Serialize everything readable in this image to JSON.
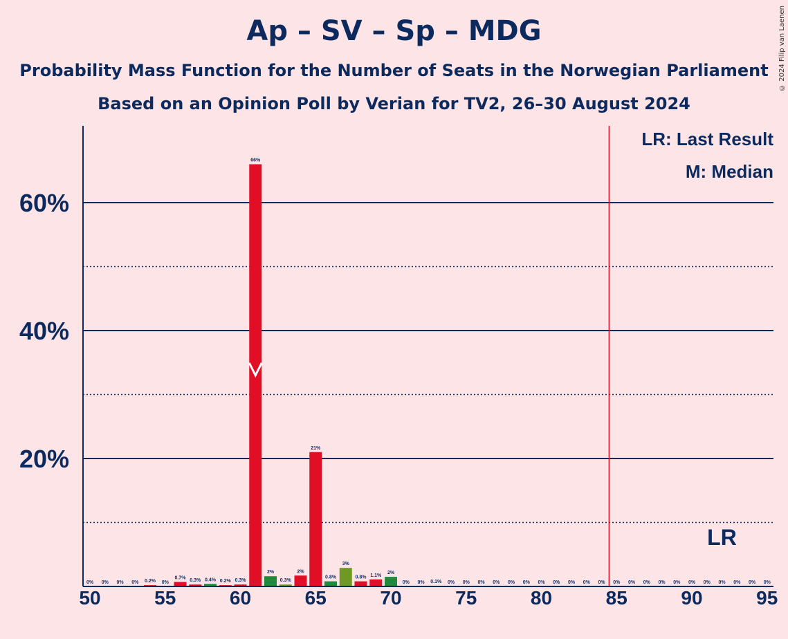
{
  "title": "Ap – SV – Sp – MDG",
  "subtitle1": "Probability Mass Function for the Number of Seats in the Norwegian Parliament",
  "subtitle2": "Based on an Opinion Poll by Verian for TV2, 26–30 August 2024",
  "copyright": "© 2024 Filip van Laenen",
  "legend": {
    "last_result": "LR: Last Result",
    "median": "M: Median"
  },
  "lr_marker": "LR",
  "colors": {
    "background": "#fde4e6",
    "text": "#0c2a5e",
    "red": "#e00f25",
    "green": "#1e8a3a",
    "olive": "#6e9a24",
    "majority_line": "#e00f25"
  },
  "chart_data": {
    "type": "bar",
    "xlim": [
      50,
      95
    ],
    "ylim": [
      0,
      72
    ],
    "x_ticks": [
      50,
      55,
      60,
      65,
      70,
      75,
      80,
      85,
      90,
      95
    ],
    "y_ticks_major": [
      20,
      40,
      60
    ],
    "y_ticks_minor": [
      10,
      30,
      50
    ],
    "y_tick_labels": [
      "20%",
      "40%",
      "60%"
    ],
    "majority_line_x": 84.5,
    "median_x": 61,
    "last_result_x": 92,
    "bars": [
      {
        "x": 50,
        "value": 0,
        "label": "0%",
        "color": "red"
      },
      {
        "x": 51,
        "value": 0,
        "label": "0%",
        "color": "red"
      },
      {
        "x": 52,
        "value": 0,
        "label": "0%",
        "color": "red"
      },
      {
        "x": 53,
        "value": 0,
        "label": "0%",
        "color": "red"
      },
      {
        "x": 54,
        "value": 0.2,
        "label": "0.2%",
        "color": "red"
      },
      {
        "x": 55,
        "value": 0,
        "label": "0%",
        "color": "red"
      },
      {
        "x": 56,
        "value": 0.7,
        "label": "0.7%",
        "color": "red"
      },
      {
        "x": 57,
        "value": 0.3,
        "label": "0.3%",
        "color": "red"
      },
      {
        "x": 58,
        "value": 0.4,
        "label": "0.4%",
        "color": "green"
      },
      {
        "x": 59,
        "value": 0.2,
        "label": "0.2%",
        "color": "red"
      },
      {
        "x": 60,
        "value": 0.3,
        "label": "0.3%",
        "color": "red"
      },
      {
        "x": 61,
        "value": 66,
        "label": "66%",
        "color": "red"
      },
      {
        "x": 62,
        "value": 1.6,
        "label": "2%",
        "color": "green"
      },
      {
        "x": 63,
        "value": 0.3,
        "label": "0.3%",
        "color": "olive"
      },
      {
        "x": 64,
        "value": 1.7,
        "label": "2%",
        "color": "red"
      },
      {
        "x": 65,
        "value": 21,
        "label": "21%",
        "color": "red"
      },
      {
        "x": 66,
        "value": 0.8,
        "label": "0.8%",
        "color": "green"
      },
      {
        "x": 67,
        "value": 2.9,
        "label": "3%",
        "color": "olive"
      },
      {
        "x": 68,
        "value": 0.8,
        "label": "0.8%",
        "color": "red"
      },
      {
        "x": 69,
        "value": 1.1,
        "label": "1.1%",
        "color": "red"
      },
      {
        "x": 70,
        "value": 1.5,
        "label": "2%",
        "color": "green"
      },
      {
        "x": 71,
        "value": 0,
        "label": "0%",
        "color": "red"
      },
      {
        "x": 72,
        "value": 0,
        "label": "0%",
        "color": "red"
      },
      {
        "x": 73,
        "value": 0.1,
        "label": "0.1%",
        "color": "red"
      },
      {
        "x": 74,
        "value": 0,
        "label": "0%",
        "color": "red"
      },
      {
        "x": 75,
        "value": 0,
        "label": "0%",
        "color": "red"
      },
      {
        "x": 76,
        "value": 0,
        "label": "0%",
        "color": "red"
      },
      {
        "x": 77,
        "value": 0,
        "label": "0%",
        "color": "red"
      },
      {
        "x": 78,
        "value": 0,
        "label": "0%",
        "color": "red"
      },
      {
        "x": 79,
        "value": 0,
        "label": "0%",
        "color": "red"
      },
      {
        "x": 80,
        "value": 0,
        "label": "0%",
        "color": "red"
      },
      {
        "x": 81,
        "value": 0,
        "label": "0%",
        "color": "red"
      },
      {
        "x": 82,
        "value": 0,
        "label": "0%",
        "color": "red"
      },
      {
        "x": 83,
        "value": 0,
        "label": "0%",
        "color": "red"
      },
      {
        "x": 84,
        "value": 0,
        "label": "0%",
        "color": "red"
      },
      {
        "x": 85,
        "value": 0,
        "label": "0%",
        "color": "red"
      },
      {
        "x": 86,
        "value": 0,
        "label": "0%",
        "color": "red"
      },
      {
        "x": 87,
        "value": 0,
        "label": "0%",
        "color": "red"
      },
      {
        "x": 88,
        "value": 0,
        "label": "0%",
        "color": "red"
      },
      {
        "x": 89,
        "value": 0,
        "label": "0%",
        "color": "red"
      },
      {
        "x": 90,
        "value": 0,
        "label": "0%",
        "color": "red"
      },
      {
        "x": 91,
        "value": 0,
        "label": "0%",
        "color": "red"
      },
      {
        "x": 92,
        "value": 0,
        "label": "0%",
        "color": "red"
      },
      {
        "x": 93,
        "value": 0,
        "label": "0%",
        "color": "red"
      },
      {
        "x": 94,
        "value": 0,
        "label": "0%",
        "color": "red"
      },
      {
        "x": 95,
        "value": 0,
        "label": "0%",
        "color": "red"
      }
    ]
  }
}
